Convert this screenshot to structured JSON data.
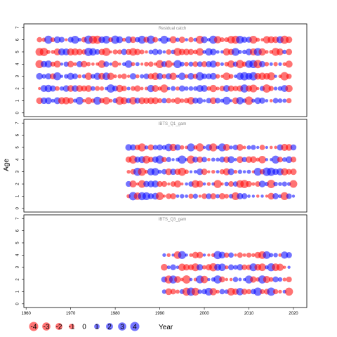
{
  "chart_data": {
    "type": "bubble-residuals",
    "xlabel": "Year",
    "ylabel": "Age",
    "xlim": [
      1959.5,
      2023
    ],
    "x_ticks": [
      1960,
      1970,
      1980,
      1990,
      2000,
      2010,
      2020
    ],
    "y_ticks": [
      0,
      1,
      2,
      3,
      4,
      5,
      6,
      7
    ],
    "colors": {
      "positive": "#0000ff",
      "negative": "#ff0000",
      "frame": "#000000"
    },
    "panels": [
      {
        "title": "Residual catch",
        "year_range": [
          1963,
          2019
        ],
        "ages": [
          1,
          2,
          3,
          4,
          5,
          6
        ],
        "ylim": [
          -0.3,
          7.3
        ]
      },
      {
        "title": "IBTS_Q1_gam",
        "year_range": [
          1983,
          2020
        ],
        "ages": [
          1,
          2,
          3,
          4,
          5
        ],
        "ylim": [
          -0.3,
          7.3
        ]
      },
      {
        "title": "IBTS_Q3_gam",
        "year_range": [
          1991,
          2019
        ],
        "ages": [
          1,
          2,
          3,
          4
        ],
        "ylim": [
          -0.3,
          7.3
        ]
      }
    ],
    "legend": {
      "entries": [
        {
          "value": -4,
          "label": "-4"
        },
        {
          "value": -3,
          "label": "-3"
        },
        {
          "value": -2,
          "label": "-2"
        },
        {
          "value": -1,
          "label": "-1"
        },
        {
          "value": 0,
          "label": "0"
        },
        {
          "value": 1,
          "label": "1"
        },
        {
          "value": 2,
          "label": "2"
        },
        {
          "value": 3,
          "label": "3"
        },
        {
          "value": 4,
          "label": "4"
        }
      ]
    }
  }
}
